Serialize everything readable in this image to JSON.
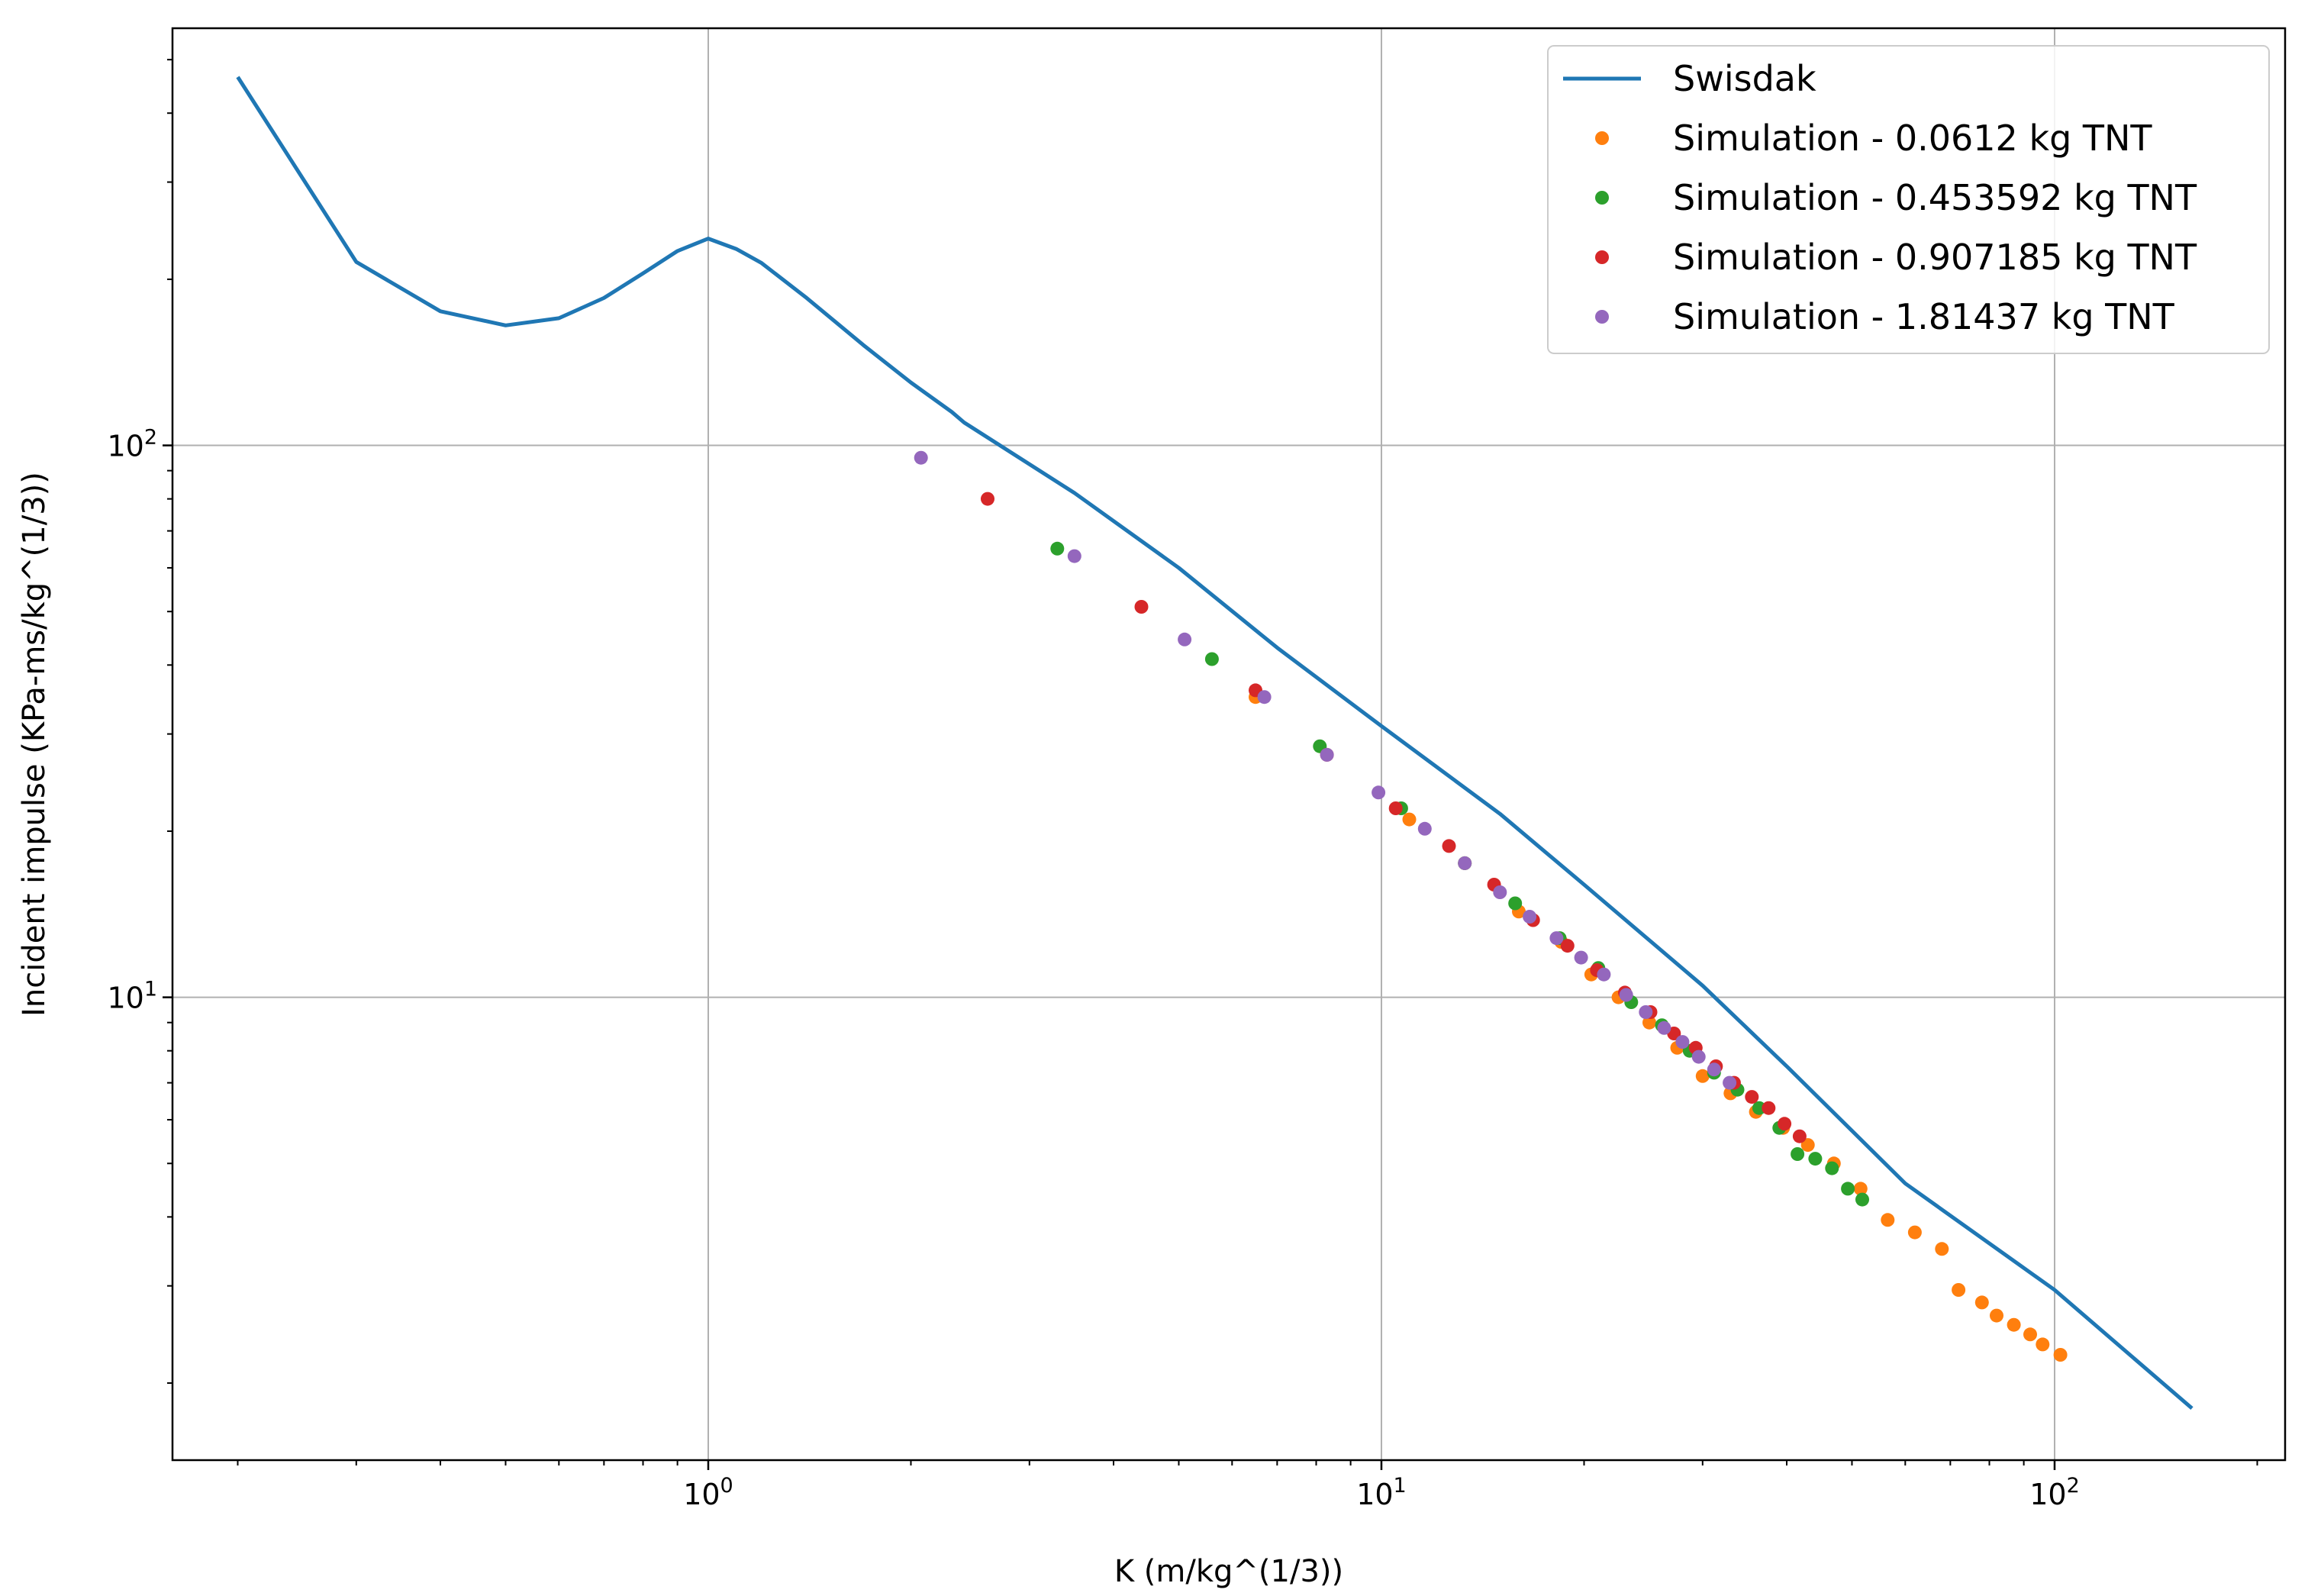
{
  "chart_data": {
    "type": "scatter",
    "title": "",
    "xlabel": "K (m/kg^(1/3))",
    "ylabel": "Incident impulse (KPa-ms/kg^(1/3))",
    "xscale": "log",
    "yscale": "log",
    "xlim": [
      0.16,
      220
    ],
    "ylim": [
      1.45,
      570
    ],
    "grid": true,
    "legend_position": "top-right",
    "x_major_ticks": [
      {
        "value": 1,
        "base": "10",
        "exp": "0"
      },
      {
        "value": 10,
        "base": "10",
        "exp": "1"
      },
      {
        "value": 100,
        "base": "10",
        "exp": "2"
      }
    ],
    "y_major_ticks": [
      {
        "value": 10,
        "base": "10",
        "exp": "1"
      },
      {
        "value": 100,
        "base": "10",
        "exp": "2"
      }
    ],
    "series": [
      {
        "name": "Swisdak",
        "kind": "line",
        "color": "#1f77b4",
        "x": [
          0.2,
          0.3,
          0.4,
          0.5,
          0.6,
          0.7,
          0.8,
          0.9,
          1.0,
          1.1,
          1.2,
          1.4,
          1.7,
          2.0,
          2.3,
          2.4,
          3.5,
          5,
          7,
          10,
          15,
          20,
          30,
          40,
          60,
          100,
          160
        ],
        "y": [
          465,
          215,
          175,
          165,
          170,
          185,
          205,
          225,
          237,
          227,
          214,
          185,
          152,
          130,
          115,
          110,
          82,
          60,
          43,
          31,
          21.5,
          16,
          10.5,
          7.5,
          4.6,
          2.95,
          1.8
        ]
      },
      {
        "name": "Simulation - 0.0612 kg TNT",
        "kind": "scatter",
        "color": "#ff7f0e",
        "x": [
          6.5,
          11,
          13.3,
          16,
          18.5,
          20.5,
          22.5,
          25,
          27.5,
          30,
          33,
          36,
          39.5,
          43,
          47,
          51.5,
          56.5,
          62,
          68,
          72,
          78,
          82,
          87,
          92,
          96,
          102
        ],
        "y": [
          35,
          21,
          17.5,
          14.3,
          12.6,
          11,
          10,
          9,
          8.1,
          7.2,
          6.7,
          6.2,
          5.8,
          5.4,
          5.0,
          4.5,
          3.95,
          3.75,
          3.5,
          2.95,
          2.8,
          2.65,
          2.55,
          2.45,
          2.35,
          2.25
        ]
      },
      {
        "name": "Simulation - 0.453592 kg TNT",
        "kind": "scatter",
        "color": "#2ca02c",
        "x": [
          3.3,
          5.6,
          8.1,
          10.7,
          13.3,
          15.8,
          18.4,
          21.0,
          23.5,
          26.1,
          28.7,
          31.2,
          33.8,
          36.4,
          39.0,
          41.5,
          44.1,
          46.7,
          49.3,
          51.8
        ],
        "y": [
          65,
          41,
          28.5,
          22,
          17.5,
          14.8,
          12.8,
          11.3,
          9.8,
          8.9,
          8.0,
          7.3,
          6.8,
          6.3,
          5.8,
          5.2,
          5.1,
          4.9,
          4.5,
          4.3
        ]
      },
      {
        "name": "Simulation - 0.907185 kg TNT",
        "kind": "scatter",
        "color": "#d62728",
        "x": [
          2.6,
          4.4,
          6.5,
          8.3,
          10.5,
          12.6,
          14.7,
          16.8,
          18.9,
          20.9,
          23.0,
          25.1,
          27.2,
          29.3,
          31.4,
          33.4,
          35.5,
          37.6,
          39.7,
          41.8
        ],
        "y": [
          80,
          51,
          36,
          27.5,
          22,
          18.8,
          16.0,
          13.8,
          12.4,
          11.2,
          10.2,
          9.4,
          8.6,
          8.1,
          7.5,
          7.0,
          6.6,
          6.3,
          5.9,
          5.6
        ]
      },
      {
        "name": "Simulation - 1.81437 kg TNT",
        "kind": "scatter",
        "color": "#9467bd",
        "x": [
          2.07,
          3.5,
          5.1,
          6.7,
          8.3,
          9.9,
          11.6,
          13.3,
          15.0,
          16.6,
          18.2,
          19.8,
          21.4,
          23.1,
          24.7,
          26.3,
          28.0,
          29.6,
          31.2,
          32.9
        ],
        "y": [
          95,
          63,
          44.5,
          35,
          27.5,
          23.5,
          20.2,
          17.5,
          15.5,
          14.0,
          12.8,
          11.8,
          11.0,
          10.1,
          9.4,
          8.8,
          8.3,
          7.8,
          7.4,
          7.0
        ]
      }
    ]
  }
}
